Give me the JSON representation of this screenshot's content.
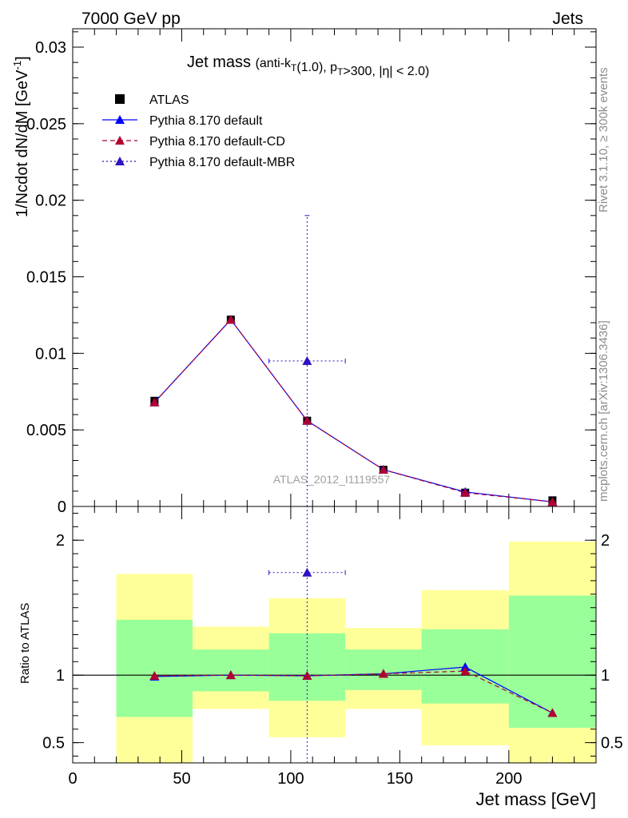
{
  "header": {
    "left": "7000 GeV pp",
    "right": "Jets"
  },
  "side": {
    "top": "Rivet 3.1.10, ≥ 300k events",
    "bottom": "mcplots.cern.ch [arXiv:1306.3436]"
  },
  "chart_data": [
    {
      "type": "scatter",
      "panel": "main",
      "title_main": "Jet mass",
      "title_sub": "(anti-k_T(1.0), p_T>300, |η| < 2.0)",
      "ylabel": "1/Ncdot dN/dM [GeV^-1]",
      "watermark": "ATLAS_2012_I1119557",
      "xlim": [
        0,
        240
      ],
      "ylim": [
        0,
        0.0312
      ],
      "yticks": [
        0,
        0.005,
        0.01,
        0.015,
        0.02,
        0.025,
        0.03
      ],
      "yticklabels": [
        "0",
        "0.005",
        "0.01",
        "0.015",
        "0.02",
        "0.025",
        "0.03"
      ],
      "legend_position": "top-left",
      "series": [
        {
          "name": "ATLAS",
          "marker": "square",
          "color": "#000000",
          "x": [
            37.5,
            72.5,
            107.5,
            142.5,
            180,
            220
          ],
          "y": [
            0.0069,
            0.0122,
            0.0056,
            0.0024,
            0.0009,
            0.0004
          ]
        },
        {
          "name": "Pythia 8.170 default",
          "marker": "triangle",
          "line": "solid",
          "color": "#0000ff",
          "x": [
            37.5,
            72.5,
            107.5,
            142.5,
            180,
            220
          ],
          "y": [
            0.0068,
            0.0122,
            0.0056,
            0.0024,
            0.00095,
            0.0003
          ]
        },
        {
          "name": "Pythia 8.170 default-CD",
          "marker": "triangle",
          "line": "dashed",
          "color": "#b00030",
          "x": [
            37.5,
            72.5,
            107.5,
            142.5,
            180,
            220
          ],
          "y": [
            0.0068,
            0.0122,
            0.0056,
            0.0024,
            0.0009,
            0.0003
          ]
        },
        {
          "name": "Pythia 8.170 default-MBR",
          "marker": "triangle",
          "line": "dotted",
          "color": "#3010c0",
          "x": [
            107.5
          ],
          "y": [
            0.0095
          ],
          "xerr": [
            [
              90,
              125
            ]
          ],
          "yerr": [
            [
              0,
              0.019
            ]
          ]
        }
      ]
    },
    {
      "type": "scatter",
      "panel": "ratio",
      "ylabel": "Ratio to ATLAS",
      "xlabel": "Jet mass [GeV]",
      "xlim": [
        0,
        240
      ],
      "ylim": [
        0.35,
        2.25
      ],
      "xticks": [
        0,
        50,
        100,
        150,
        200
      ],
      "xticklabels": [
        "0",
        "50",
        "100",
        "150",
        "200"
      ],
      "yticks": [
        0.5,
        1,
        2
      ],
      "yticklabels": [
        "0.5",
        "1",
        "2"
      ],
      "reference_line": 1,
      "bands": [
        {
          "xlo": 20,
          "xhi": 55,
          "y_lo": 0.69,
          "y_hi": 1.41,
          "tot_lo": 0.35,
          "tot_hi": 1.75
        },
        {
          "xlo": 55,
          "xhi": 90,
          "y_lo": 0.88,
          "y_hi": 1.19,
          "tot_lo": 0.75,
          "tot_hi": 1.36
        },
        {
          "xlo": 90,
          "xhi": 125,
          "y_lo": 0.81,
          "y_hi": 1.31,
          "tot_lo": 0.54,
          "tot_hi": 1.57
        },
        {
          "xlo": 125,
          "xhi": 160,
          "y_lo": 0.89,
          "y_hi": 1.19,
          "tot_lo": 0.75,
          "tot_hi": 1.35
        },
        {
          "xlo": 160,
          "xhi": 200,
          "y_lo": 0.79,
          "y_hi": 1.34,
          "tot_lo": 0.48,
          "tot_hi": 1.63
        },
        {
          "xlo": 200,
          "xhi": 240,
          "y_lo": 0.61,
          "y_hi": 1.59,
          "tot_lo": 0.35,
          "tot_hi": 1.99
        }
      ],
      "band_colors": {
        "stat": "#99ff99",
        "total": "#ffff99"
      },
      "series": [
        {
          "name": "Pythia 8.170 default",
          "marker": "triangle",
          "line": "solid",
          "color": "#0000ff",
          "x": [
            37.5,
            72.5,
            107.5,
            142.5,
            180,
            220
          ],
          "y": [
            0.99,
            1.0,
            0.995,
            1.01,
            1.06,
            0.72
          ]
        },
        {
          "name": "Pythia 8.170 default-CD",
          "marker": "triangle",
          "line": "dashed",
          "color": "#b00030",
          "x": [
            37.5,
            72.5,
            107.5,
            142.5,
            180,
            220
          ],
          "y": [
            0.995,
            1.0,
            0.995,
            1.01,
            1.03,
            0.72
          ]
        },
        {
          "name": "Pythia 8.170 default-MBR",
          "marker": "triangle",
          "line": "dotted",
          "color": "#3010c0",
          "x": [
            107.5
          ],
          "y": [
            1.76
          ],
          "xerr": [
            [
              90,
              125
            ]
          ],
          "yerr": [
            [
              0.35,
              2.25
            ]
          ]
        }
      ]
    }
  ]
}
